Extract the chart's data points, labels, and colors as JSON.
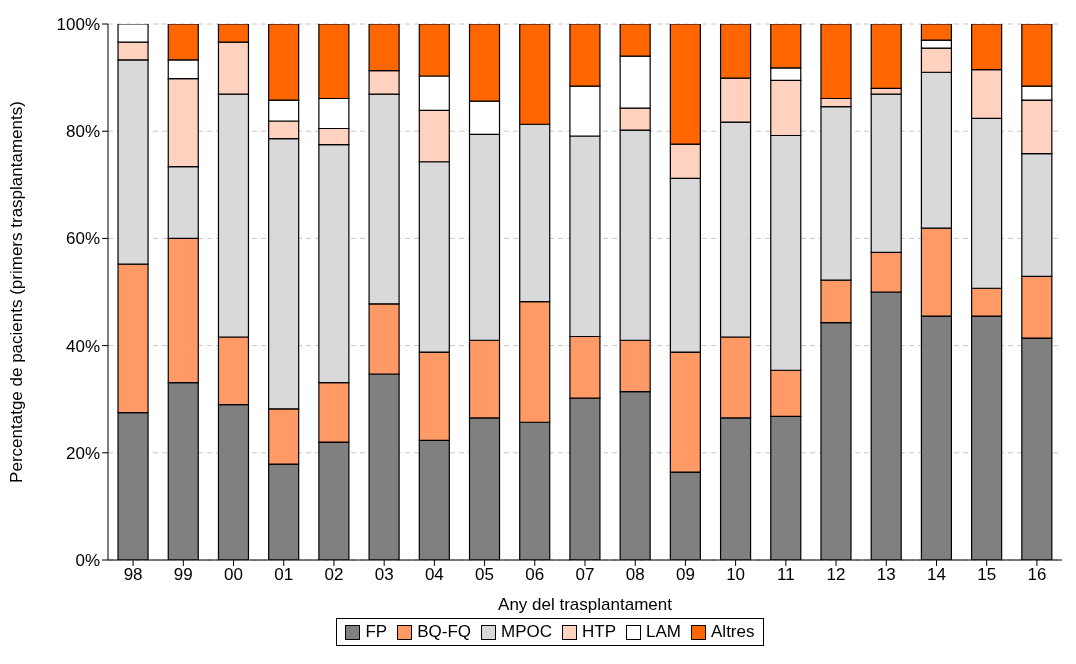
{
  "chart_data": {
    "type": "bar",
    "stacked": true,
    "xlabel": "Any del trasplantament",
    "ylabel": "Percentatge de pacients (primers trasplantaments)",
    "categories": [
      "98",
      "99",
      "00",
      "01",
      "02",
      "03",
      "04",
      "05",
      "06",
      "07",
      "08",
      "09",
      "10",
      "11",
      "12",
      "13",
      "14",
      "15",
      "16"
    ],
    "series": [
      {
        "name": "FP",
        "color": "#808080",
        "values": [
          27.5,
          33.1,
          29.0,
          17.9,
          22.0,
          34.7,
          22.3,
          26.5,
          25.7,
          30.2,
          31.4,
          16.4,
          26.5,
          26.8,
          44.3,
          50.0,
          45.5,
          45.5,
          41.4
        ]
      },
      {
        "name": "BQ-FQ",
        "color": "#ff9966",
        "values": [
          27.7,
          26.9,
          12.6,
          10.3,
          11.1,
          13.1,
          16.5,
          14.5,
          22.5,
          11.5,
          9.6,
          22.4,
          15.1,
          8.6,
          7.9,
          7.4,
          16.4,
          5.2,
          11.5
        ]
      },
      {
        "name": "MPOC",
        "color": "#d9d9d9",
        "values": [
          38.1,
          13.4,
          45.3,
          50.4,
          44.4,
          39.1,
          35.5,
          38.4,
          33.1,
          37.4,
          39.2,
          32.4,
          40.1,
          43.8,
          32.4,
          29.5,
          29.1,
          31.7,
          22.9
        ]
      },
      {
        "name": "HTP",
        "color": "#ffd1bf",
        "values": [
          3.3,
          16.4,
          9.7,
          3.3,
          3.0,
          4.4,
          9.6,
          0,
          0,
          0,
          4.1,
          6.4,
          8.2,
          10.3,
          1.5,
          1.1,
          4.5,
          9.1,
          10.0
        ]
      },
      {
        "name": "LAM",
        "color": "#ffffff",
        "values": [
          3.4,
          3.5,
          0,
          3.9,
          5.6,
          0,
          6.4,
          6.2,
          0,
          9.3,
          9.7,
          0,
          0,
          2.3,
          0,
          0,
          1.5,
          0,
          2.6
        ]
      },
      {
        "name": "Altres",
        "color": "#ff6600",
        "values": [
          0,
          6.7,
          3.4,
          14.2,
          13.9,
          8.7,
          9.7,
          14.4,
          18.7,
          11.6,
          6.0,
          22.4,
          10.1,
          8.2,
          13.9,
          12.0,
          3.0,
          8.5,
          11.6
        ]
      }
    ],
    "ylim": [
      0,
      100
    ],
    "yticks": [
      {
        "value": 0,
        "label": "0%"
      },
      {
        "value": 20,
        "label": "20%"
      },
      {
        "value": 40,
        "label": "40%"
      },
      {
        "value": 60,
        "label": "60%"
      },
      {
        "value": 80,
        "label": "80%"
      },
      {
        "value": 100,
        "label": "100%"
      }
    ],
    "grid": "y",
    "legend": "bottom"
  }
}
